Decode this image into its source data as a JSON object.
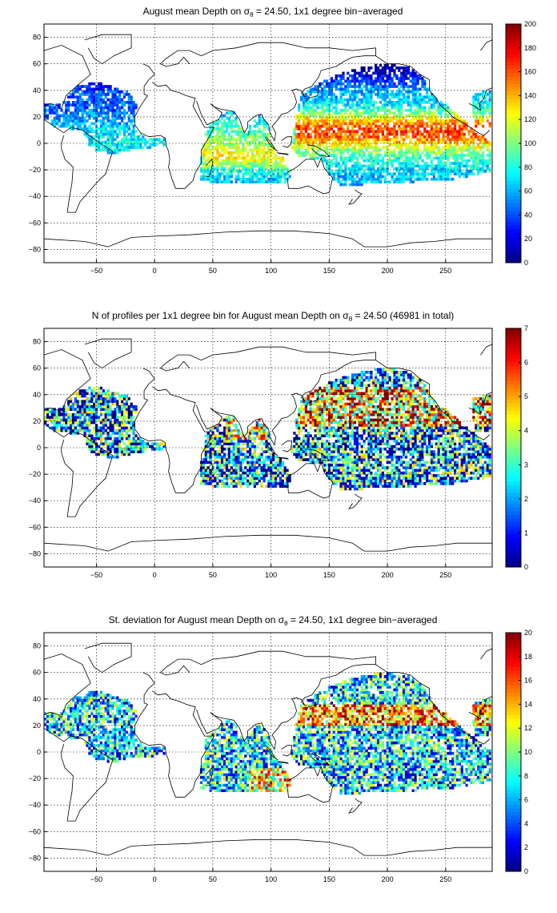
{
  "chart_data": [
    {
      "type": "heatmap",
      "title": "August mean Depth on σ",
      "title_sub": "θ",
      "title_rest": " = 24.50, 1x1 degree bin−averaged",
      "xlim": [
        -95,
        290
      ],
      "ylim": [
        -90,
        90
      ],
      "xticks": [
        -50,
        0,
        50,
        100,
        150,
        200,
        250
      ],
      "yticks": [
        -80,
        -60,
        -40,
        -20,
        0,
        20,
        40,
        60,
        80
      ],
      "grid": true,
      "colormap": "jet",
      "colorbar": {
        "min": 0,
        "max": 200,
        "ticks": [
          0,
          20,
          40,
          60,
          80,
          100,
          120,
          140,
          160,
          180,
          200
        ]
      },
      "field": "depth"
    },
    {
      "type": "heatmap",
      "title": "N of profiles per 1x1 degree bin for August mean Depth on σ",
      "title_sub": "θ",
      "title_rest": " = 24.50 (46981 in total)",
      "xlim": [
        -95,
        290
      ],
      "ylim": [
        -90,
        90
      ],
      "xticks": [
        -50,
        0,
        50,
        100,
        150,
        200,
        250
      ],
      "yticks": [
        -80,
        -60,
        -40,
        -20,
        0,
        20,
        40,
        60,
        80
      ],
      "grid": true,
      "colormap": "jet",
      "colorbar": {
        "min": 0,
        "max": 7,
        "ticks": [
          0,
          1,
          2,
          3,
          4,
          5,
          6,
          7
        ]
      },
      "field": "count"
    },
    {
      "type": "heatmap",
      "title": "St. deviation for August mean Depth on σ",
      "title_sub": "θ",
      "title_rest": " = 24.50, 1x1 degree bin−averaged",
      "xlim": [
        -95,
        290
      ],
      "ylim": [
        -90,
        90
      ],
      "xticks": [
        -50,
        0,
        50,
        100,
        150,
        200,
        250
      ],
      "yticks": [
        -80,
        -60,
        -40,
        -20,
        0,
        20,
        40,
        60,
        80
      ],
      "grid": true,
      "colormap": "jet",
      "colorbar": {
        "min": 0,
        "max": 20,
        "ticks": [
          0,
          2,
          4,
          6,
          8,
          10,
          12,
          14,
          16,
          18,
          20
        ]
      },
      "field": "std"
    }
  ]
}
